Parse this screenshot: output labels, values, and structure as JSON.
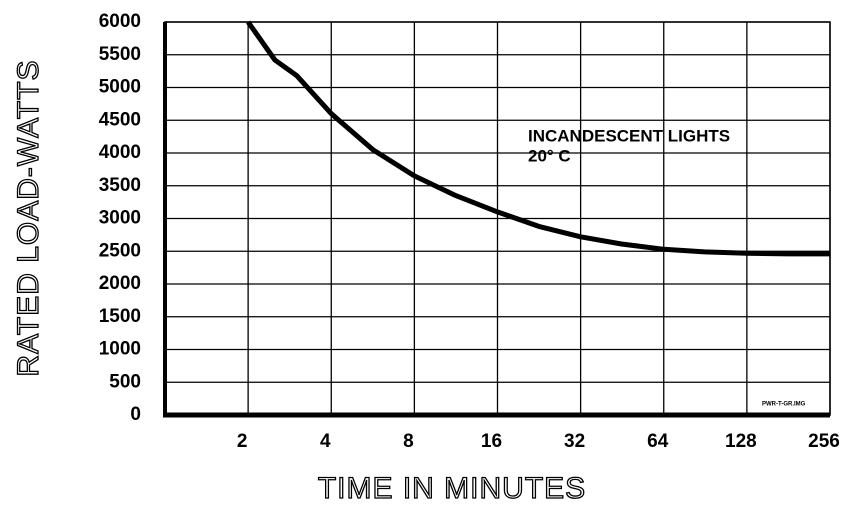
{
  "chart_data": {
    "type": "line",
    "xlabel": "TIME IN MINUTES",
    "ylabel": "RATED LOAD-WATTS",
    "annotations": [
      "INCANDESCENT LIGHTS",
      "20° C",
      "PWR-T-GR.IMG"
    ],
    "x": [
      2,
      2.5,
      3,
      4,
      5.66,
      8,
      11.3,
      16,
      22.6,
      32,
      45,
      64,
      90,
      128,
      181,
      256
    ],
    "values": [
      6000,
      5420,
      5180,
      4600,
      4050,
      3650,
      3350,
      3100,
      2880,
      2720,
      2610,
      2530,
      2490,
      2470,
      2460,
      2460
    ],
    "color": "#000000",
    "xscale": "log",
    "xlim": [
      1,
      256
    ],
    "xticks": [
      2,
      4,
      8,
      16,
      32,
      64,
      128,
      256
    ],
    "ylim": [
      0,
      6000
    ],
    "yticks": [
      0,
      500,
      1000,
      1500,
      2000,
      2500,
      3000,
      3500,
      4000,
      4500,
      5000,
      5500,
      6000
    ],
    "grid": true
  }
}
